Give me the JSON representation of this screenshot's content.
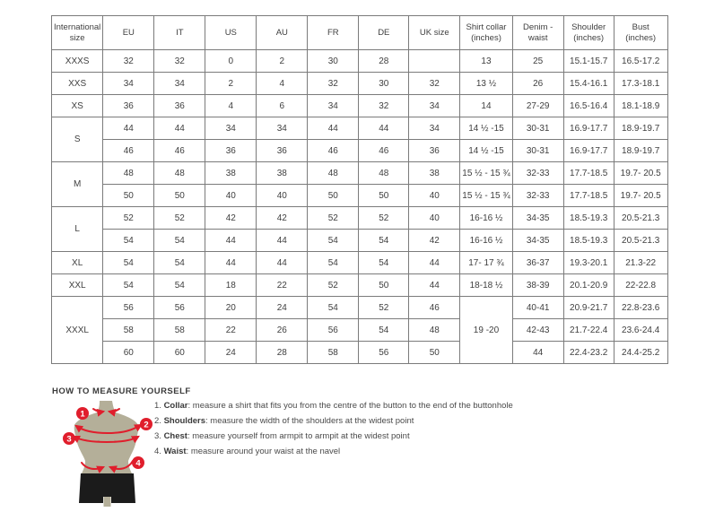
{
  "table": {
    "headers": [
      "International size",
      "EU",
      "IT",
      "US",
      "AU",
      "FR",
      "DE",
      "UK size",
      "Shirt collar (inches)",
      "Denim - waist",
      "Shoulder (inches)",
      "Bust (inches)"
    ],
    "rows": [
      [
        "XXXS",
        "32",
        "32",
        "0",
        "2",
        "30",
        "28",
        "",
        "13",
        "25",
        "15.1-15.7",
        "16.5-17.2"
      ],
      [
        "XXS",
        "34",
        "34",
        "2",
        "4",
        "32",
        "30",
        "32",
        "13 ½",
        "26",
        "15.4-16.1",
        "17.3-18.1"
      ],
      [
        "XS",
        "36",
        "36",
        "4",
        "6",
        "34",
        "32",
        "34",
        "14",
        "27-29",
        "16.5-16.4",
        "18.1-18.9"
      ],
      [
        {
          "v": "S",
          "rs": 2
        },
        "44",
        "44",
        "34",
        "34",
        "44",
        "44",
        "34",
        "14 ½ -15",
        "30-31",
        "16.9-17.7",
        "18.9-19.7"
      ],
      [
        "46",
        "46",
        "36",
        "36",
        "46",
        "46",
        "36",
        "14 ½ -15",
        "30-31",
        "16.9-17.7",
        "18.9-19.7"
      ],
      [
        {
          "v": "M",
          "rs": 2
        },
        "48",
        "48",
        "38",
        "38",
        "48",
        "48",
        "38",
        "15 ½ - 15 ¾",
        "32-33",
        "17.7-18.5",
        "19.7- 20.5"
      ],
      [
        "50",
        "50",
        "40",
        "40",
        "50",
        "50",
        "40",
        "15 ½ - 15 ¾",
        "32-33",
        "17.7-18.5",
        "19.7- 20.5"
      ],
      [
        {
          "v": "L",
          "rs": 2
        },
        "52",
        "52",
        "42",
        "42",
        "52",
        "52",
        "40",
        "16-16 ½",
        "34-35",
        "18.5-19.3",
        "20.5-21.3"
      ],
      [
        "54",
        "54",
        "44",
        "44",
        "54",
        "54",
        "42",
        "16-16 ½",
        "34-35",
        "18.5-19.3",
        "20.5-21.3"
      ],
      [
        "XL",
        "54",
        "54",
        "44",
        "44",
        "54",
        "54",
        "44",
        "17- 17 ¾",
        "36-37",
        "19.3-20.1",
        "21.3-22"
      ],
      [
        "XXL",
        "54",
        "54",
        "18",
        "22",
        "52",
        "50",
        "44",
        "18-18 ½",
        "38-39",
        "20.1-20.9",
        "22-22.8"
      ],
      [
        {
          "v": "XXXL",
          "rs": 3
        },
        "56",
        "56",
        "20",
        "24",
        "54",
        "52",
        "46",
        {
          "v": "19 -20",
          "rs": 3
        },
        "40-41",
        "20.9-21.7",
        "22.8-23.6"
      ],
      [
        "58",
        "58",
        "22",
        "26",
        "56",
        "54",
        "48",
        "42-43",
        "21.7-22.4",
        "23.6-24.4"
      ],
      [
        "60",
        "60",
        "24",
        "28",
        "58",
        "56",
        "50",
        "44",
        "22.4-23.2",
        "24.4-25.2"
      ]
    ]
  },
  "measure": {
    "title": "HOW TO MEASURE YOURSELF",
    "items": [
      {
        "num": "1. ",
        "label": "Collar",
        "text": ": measure a shirt that fits you from the centre of the button to the end of the buttonhole"
      },
      {
        "num": "2. ",
        "label": "Shoulders",
        "text": ": measure the width of the shoulders at the widest point"
      },
      {
        "num": "3. ",
        "label": "Chest",
        "text": ": measure yourself from armpit to armpit at the widest point"
      },
      {
        "num": "4. ",
        "label": "Waist",
        "text": ": measure around your waist at the navel"
      }
    ]
  },
  "figure": {
    "points": [
      "1",
      "2",
      "3",
      "4"
    ]
  },
  "colors": {
    "accent_red": "#e01e2c",
    "torso": "#b4af99",
    "shorts": "#1b1b1b",
    "table_border": "#7b7b7b",
    "text": "#3f3f3f"
  }
}
